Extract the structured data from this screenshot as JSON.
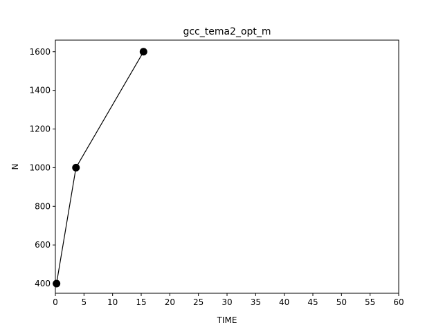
{
  "chart_data": {
    "type": "line",
    "title": "gcc_tema2_opt_m",
    "xlabel": "TIME",
    "ylabel": "N",
    "xlim": [
      0,
      60
    ],
    "ylim": [
      350,
      1660
    ],
    "xticks": [
      0,
      5,
      10,
      15,
      20,
      25,
      30,
      35,
      40,
      45,
      50,
      55,
      60
    ],
    "yticks": [
      400,
      600,
      800,
      1000,
      1200,
      1400,
      1600
    ],
    "grid": false,
    "legend": "none",
    "series": [
      {
        "color": "#000000",
        "marker": "circle",
        "points": [
          {
            "x": 0.2,
            "y": 400
          },
          {
            "x": 3.6,
            "y": 1000
          },
          {
            "x": 15.4,
            "y": 1600
          }
        ]
      }
    ]
  }
}
